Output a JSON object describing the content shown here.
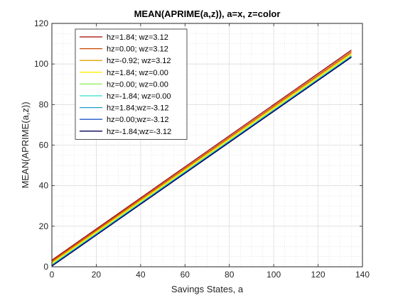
{
  "chart_data": {
    "type": "line",
    "title": "MEAN(APRIME(a,z)), a=x, z=color",
    "xlabel": "Savings States, a",
    "ylabel": "MEAN(APRIME(a,z))",
    "xlim": [
      0,
      140
    ],
    "ylim": [
      0,
      120
    ],
    "xticks": [
      0,
      20,
      40,
      60,
      80,
      100,
      120,
      140
    ],
    "yticks": [
      0,
      20,
      40,
      60,
      80,
      100,
      120
    ],
    "grid": true,
    "minor_grid": true,
    "legend_position": "top-left",
    "series": [
      {
        "name": "hz=1.84; wz=3.12",
        "color": "#a00000",
        "x": [
          0,
          135
        ],
        "y": [
          3.3,
          106.8
        ]
      },
      {
        "name": "hz=0.00; wz=3.12",
        "color": "#cc4400",
        "x": [
          0,
          135
        ],
        "y": [
          2.7,
          106.0
        ]
      },
      {
        "name": "hz=-0.92; wz=3.12",
        "color": "#e0a000",
        "x": [
          0,
          135
        ],
        "y": [
          2.2,
          105.4
        ]
      },
      {
        "name": "hz=1.84; wz=0.00",
        "color": "#ffee00",
        "x": [
          0,
          135
        ],
        "y": [
          1.7,
          104.8
        ]
      },
      {
        "name": "hz=0.00; wz=0.00",
        "color": "#88ee55",
        "x": [
          0,
          135
        ],
        "y": [
          1.2,
          104.2
        ]
      },
      {
        "name": "hz=-1.84; wz=0.00",
        "color": "#33ddcc",
        "x": [
          0,
          135
        ],
        "y": [
          0.9,
          103.9
        ]
      },
      {
        "name": "hz=1.84;wz=-3.12",
        "color": "#2299cc",
        "x": [
          0,
          135
        ],
        "y": [
          0.7,
          103.7
        ]
      },
      {
        "name": "hz=0.00;wz=-3.12",
        "color": "#2255cc",
        "x": [
          0,
          135
        ],
        "y": [
          0.5,
          103.5
        ]
      },
      {
        "name": "hz=-1.84;wz=-3.12",
        "color": "#000055",
        "x": [
          0,
          135
        ],
        "y": [
          0.3,
          103.3
        ]
      }
    ]
  }
}
